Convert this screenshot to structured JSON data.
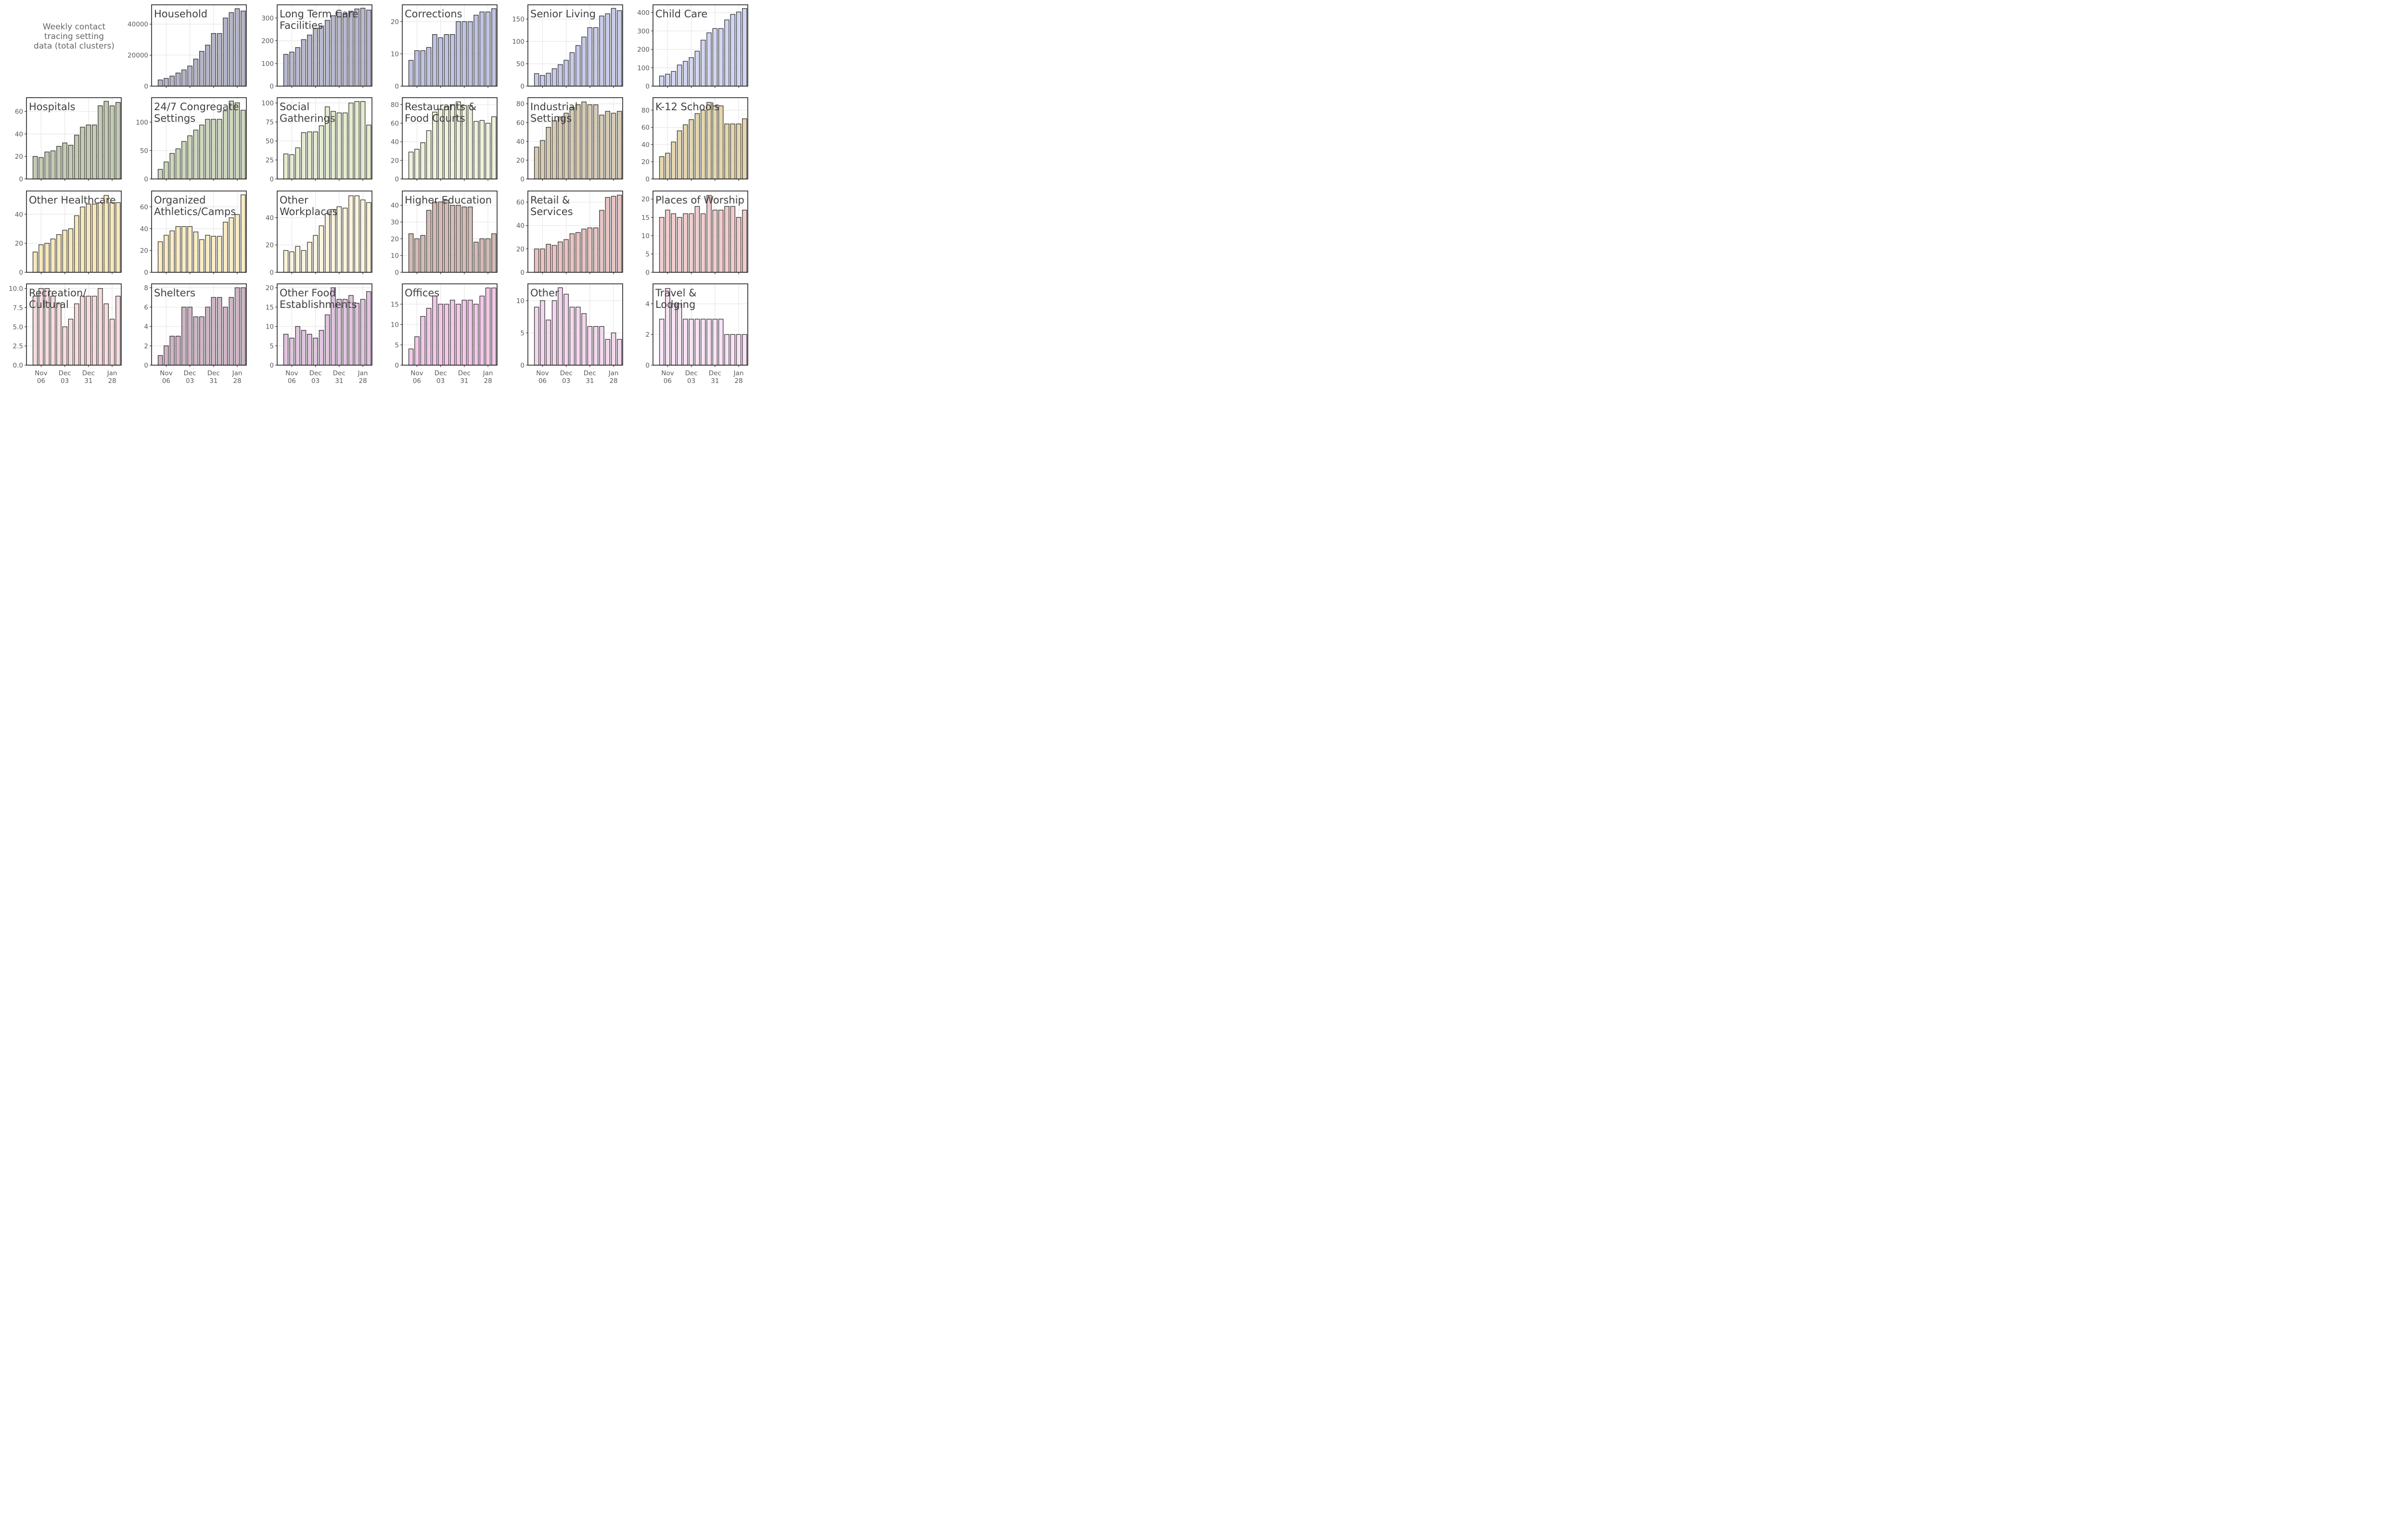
{
  "heading": [
    "Weekly contact",
    "tracing setting",
    "data (total clusters)"
  ],
  "x_tick_labels": [
    [
      "Nov",
      "06"
    ],
    [
      "Dec",
      "03"
    ],
    [
      "Dec",
      "31"
    ],
    [
      "Jan",
      "28"
    ]
  ],
  "chart_data": [
    {
      "type": "bar",
      "title": [
        "Household"
      ],
      "color": "#b4b4c9",
      "yticks": [
        "0",
        "20000",
        "40000"
      ],
      "ylim": [
        0,
        52500
      ],
      "values": [
        4000,
        5000,
        6500,
        8500,
        10500,
        13000,
        17500,
        22500,
        26500,
        34000,
        34000,
        44000,
        47500,
        50000,
        48500
      ]
    },
    {
      "type": "bar",
      "title": [
        "Long Term Care",
        "Facilities"
      ],
      "color": "#b8b8cf",
      "yticks": [
        "0",
        "100",
        "200",
        "300"
      ],
      "ylim": [
        0,
        358
      ],
      "values": [
        140,
        150,
        170,
        205,
        225,
        255,
        265,
        290,
        310,
        325,
        320,
        330,
        340,
        343,
        335
      ]
    },
    {
      "type": "bar",
      "title": [
        "Corrections"
      ],
      "color": "#c0c3e0",
      "yticks": [
        "0",
        "10",
        "20"
      ],
      "ylim": [
        0,
        25.2
      ],
      "values": [
        8,
        11,
        11,
        12,
        16,
        15,
        16,
        16,
        20,
        20,
        20,
        22,
        23,
        23,
        24
      ]
    },
    {
      "type": "bar",
      "title": [
        "Senior Living"
      ],
      "color": "#c7cae9",
      "yticks": [
        "0",
        "50",
        "100",
        "150"
      ],
      "ylim": [
        0,
        182
      ],
      "values": [
        28,
        24,
        29,
        39,
        48,
        58,
        75,
        91,
        110,
        131,
        131,
        157,
        162,
        174,
        169
      ]
    },
    {
      "type": "bar",
      "title": [
        "Child Care"
      ],
      "color": "#d2d5f2",
      "yticks": [
        "0",
        "100",
        "200",
        "300",
        "400"
      ],
      "ylim": [
        0,
        442
      ],
      "values": [
        55,
        65,
        80,
        115,
        135,
        155,
        190,
        250,
        290,
        313,
        313,
        360,
        390,
        403,
        422
      ]
    },
    {
      "type": "bar",
      "title": [
        "Hospitals"
      ],
      "color": "#c3cbb3",
      "yticks": [
        "0",
        "20",
        "40",
        "60"
      ],
      "ylim": [
        0,
        72.2
      ],
      "values": [
        20,
        19,
        24,
        25,
        29,
        32,
        30,
        39,
        46,
        48,
        48,
        65,
        69,
        65,
        68
      ]
    },
    {
      "type": "bar",
      "title": [
        "24/7 Congregate",
        "Settings"
      ],
      "color": "#cdd7bb",
      "yticks": [
        "0",
        "50",
        "100"
      ],
      "ylim": [
        0,
        143
      ],
      "values": [
        17,
        30,
        45,
        53,
        66,
        76,
        86,
        95,
        105,
        105,
        105,
        120,
        137,
        134,
        121
      ]
    },
    {
      "type": "bar",
      "title": [
        "Social",
        "Gatherings"
      ],
      "color": "#e3eccd",
      "yticks": [
        "0",
        "25",
        "50",
        "75",
        "100"
      ],
      "ylim": [
        0,
        107
      ],
      "values": [
        33,
        32,
        41,
        61,
        62,
        62,
        70,
        95,
        89,
        87,
        87,
        100,
        102,
        102,
        71
      ]
    },
    {
      "type": "bar",
      "title": [
        "Restaurants &",
        "Food Courts"
      ],
      "color": "#eef2db",
      "yticks": [
        "0",
        "20",
        "40",
        "60",
        "80"
      ],
      "ylim": [
        0,
        87.5
      ],
      "values": [
        29,
        32,
        39,
        52,
        72,
        75,
        78,
        80,
        83,
        79,
        79,
        62,
        63,
        60,
        67
      ]
    },
    {
      "type": "bar",
      "title": [
        "Industrial",
        "Settings"
      ],
      "color": "#d6cbb2",
      "yticks": [
        "0",
        "20",
        "40",
        "60",
        "80"
      ],
      "ylim": [
        0,
        86.5
      ],
      "values": [
        34,
        41,
        55,
        62,
        66,
        70,
        76,
        79,
        82,
        79,
        79,
        68,
        72,
        70,
        72
      ]
    },
    {
      "type": "bar",
      "title": [
        "K-12 Schools"
      ],
      "color": "#e4d6ad",
      "yticks": [
        "0",
        "20",
        "40",
        "60",
        "80"
      ],
      "ylim": [
        0,
        94.5
      ],
      "values": [
        26,
        30,
        43,
        56,
        63,
        69,
        76,
        80,
        89,
        85,
        85,
        64,
        64,
        64,
        70
      ]
    },
    {
      "type": "bar",
      "title": [
        "Other Healthcare"
      ],
      "color": "#f7e8bc",
      "yticks": [
        "0",
        "20",
        "40"
      ],
      "ylim": [
        0,
        56
      ],
      "values": [
        14,
        19,
        20,
        23,
        26,
        29,
        30,
        39,
        45,
        47,
        47,
        48,
        53,
        48,
        48
      ]
    },
    {
      "type": "bar",
      "title": [
        "Organized",
        "Athletics/Camps"
      ],
      "color": "#f9ecc4",
      "yticks": [
        "0",
        "20",
        "40",
        "60"
      ],
      "ylim": [
        0,
        74.5
      ],
      "values": [
        28,
        34,
        38,
        42,
        42,
        42,
        37,
        30,
        34,
        33,
        33,
        46,
        50,
        53,
        71
      ]
    },
    {
      "type": "bar",
      "title": [
        "Other",
        "Workplaces"
      ],
      "color": "#fbf3dc",
      "yticks": [
        "0",
        "20",
        "40"
      ],
      "ylim": [
        0,
        59.5
      ],
      "values": [
        16,
        15,
        19,
        16,
        22,
        27,
        34,
        43,
        46,
        48,
        47,
        56,
        56,
        53,
        51
      ]
    },
    {
      "type": "bar",
      "title": [
        "Higher Education"
      ],
      "color": "#d3bbb6",
      "yticks": [
        "0",
        "10",
        "20",
        "30",
        "40"
      ],
      "ylim": [
        0,
        48.5
      ],
      "values": [
        23,
        20,
        22,
        37,
        42,
        42,
        43,
        40,
        40,
        39,
        39,
        18,
        20,
        20,
        23
      ]
    },
    {
      "type": "bar",
      "title": [
        "Retail &",
        "Services"
      ],
      "color": "#e8c3c1",
      "yticks": [
        "0",
        "20",
        "40",
        "60"
      ],
      "ylim": [
        0,
        69.5
      ],
      "values": [
        20,
        20,
        24,
        23,
        26,
        28,
        33,
        34,
        37,
        38,
        38,
        53,
        64,
        65,
        66
      ]
    },
    {
      "type": "bar",
      "title": [
        "Places of Worship"
      ],
      "color": "#f2cccd",
      "yticks": [
        "0",
        "5",
        "10",
        "15",
        "20"
      ],
      "ylim": [
        0,
        22.2
      ],
      "values": [
        15,
        17,
        16,
        15,
        16,
        16,
        18,
        16,
        21,
        17,
        17,
        18,
        18,
        15,
        17
      ]
    },
    {
      "type": "bar",
      "title": [
        "Recreation/",
        "Cultural"
      ],
      "color": "#f7dcdf",
      "yticks": [
        "0.0",
        "2.5",
        "5.0",
        "7.5",
        "10.0"
      ],
      "ylim": [
        0,
        10.6
      ],
      "values": [
        9,
        10,
        10,
        9,
        8,
        5,
        6,
        8,
        9,
        9,
        9,
        10,
        8,
        6,
        9
      ]
    },
    {
      "type": "bar",
      "title": [
        "Shelters"
      ],
      "color": "#cfb5c6",
      "yticks": [
        "0",
        "2",
        "4",
        "6",
        "8"
      ],
      "ylim": [
        0,
        8.4
      ],
      "values": [
        1,
        2,
        3,
        3,
        6,
        6,
        5,
        5,
        6,
        7,
        7,
        6,
        7,
        8,
        8
      ]
    },
    {
      "type": "bar",
      "title": [
        "Other Food",
        "Establishments"
      ],
      "color": "#e1c4df",
      "yticks": [
        "0",
        "5",
        "10",
        "15",
        "20"
      ],
      "ylim": [
        0,
        21
      ],
      "values": [
        8,
        7,
        10,
        9,
        8,
        7,
        9,
        13,
        20,
        17,
        17,
        18,
        16,
        17,
        19
      ]
    },
    {
      "type": "bar",
      "title": [
        "Offices"
      ],
      "color": "#f2c8e8",
      "yticks": [
        "0",
        "5",
        "10",
        "15"
      ],
      "ylim": [
        0,
        20
      ],
      "values": [
        4,
        7,
        12,
        14,
        17,
        15,
        15,
        16,
        15,
        16,
        16,
        15,
        17,
        19,
        19
      ]
    },
    {
      "type": "bar",
      "title": [
        "Other"
      ],
      "color": "#f4d7ef",
      "yticks": [
        "0",
        "5",
        "10"
      ],
      "ylim": [
        0,
        12.6
      ],
      "values": [
        9,
        10,
        7,
        10,
        12,
        11,
        9,
        9,
        8,
        6,
        6,
        6,
        4,
        5,
        4
      ]
    },
    {
      "type": "bar",
      "title": [
        "Travel &",
        "Lodging"
      ],
      "color": "#f9e2f6",
      "yticks": [
        "0",
        "2",
        "4"
      ],
      "ylim": [
        0,
        5.3
      ],
      "values": [
        3,
        5,
        4,
        4,
        3,
        3,
        3,
        3,
        3,
        3,
        3,
        2,
        2,
        2,
        2
      ]
    }
  ]
}
